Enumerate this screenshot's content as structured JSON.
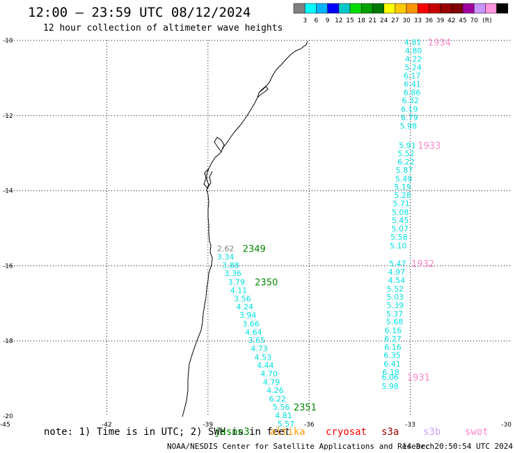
{
  "title": "12:00 — 23:59 UTC 08/12/2024",
  "subtitle": "12 hour collection of altimeter wave heights",
  "color_scale": {
    "unit": "(ft)",
    "colors": [
      "#808080",
      "#00ffff",
      "#00b4ff",
      "#0000ff",
      "#00c8c8",
      "#00dc00",
      "#00a000",
      "#007800",
      "#ffff00",
      "#ffc800",
      "#ff9600",
      "#ff0000",
      "#c80000",
      "#960000",
      "#800000",
      "#a000a0",
      "#c896ff",
      "#ff96dc",
      "#000000"
    ],
    "labels": [
      "3",
      "6",
      "9",
      "12",
      "15",
      "18",
      "21",
      "24",
      "27",
      "30",
      "33",
      "36",
      "39",
      "42",
      "45",
      "70"
    ]
  },
  "axes": {
    "lon_labels": [
      "-45",
      "-42",
      "-39",
      "-36",
      "-33",
      "-30"
    ],
    "lat_labels": [
      "-10",
      "-12",
      "-14",
      "-16",
      "-18",
      "-20"
    ],
    "lon_range": [
      -45,
      -30
    ],
    "lat_range": [
      -20,
      -10
    ]
  },
  "tracks": [
    {
      "color": "#00e0e0",
      "points": [
        {
          "lon": -33.18,
          "lat": -10.05,
          "v": "4.81"
        },
        {
          "lon": -33.16,
          "lat": -10.27,
          "v": "4.80"
        },
        {
          "lon": -33.16,
          "lat": -10.49,
          "v": "4.22"
        },
        {
          "lon": -33.17,
          "lat": -10.71,
          "v": "5.24"
        },
        {
          "lon": -33.2,
          "lat": -10.94,
          "v": "6.17"
        },
        {
          "lon": -33.19,
          "lat": -11.16,
          "v": "6.41"
        },
        {
          "lon": -33.2,
          "lat": -11.38,
          "v": "6.86"
        },
        {
          "lon": -33.25,
          "lat": -11.6,
          "v": "6.32"
        },
        {
          "lon": -33.28,
          "lat": -11.83,
          "v": "6.19"
        },
        {
          "lon": -33.28,
          "lat": -12.05,
          "v": "6.79"
        },
        {
          "lon": -33.31,
          "lat": -12.27,
          "v": "5.98"
        },
        {
          "lon": -33.34,
          "lat": -12.79,
          "v": "5.91"
        },
        {
          "lon": -33.38,
          "lat": -13.01,
          "v": "5.52"
        },
        {
          "lon": -33.38,
          "lat": -13.23,
          "v": "6.22"
        },
        {
          "lon": -33.43,
          "lat": -13.45,
          "v": "5.87"
        },
        {
          "lon": -33.45,
          "lat": -13.68,
          "v": "5.49"
        },
        {
          "lon": -33.48,
          "lat": -13.9,
          "v": "5.19"
        },
        {
          "lon": -33.48,
          "lat": -14.12,
          "v": "5.28"
        },
        {
          "lon": -33.52,
          "lat": -14.34,
          "v": "5.71"
        },
        {
          "lon": -33.55,
          "lat": -14.57,
          "v": "5.08"
        },
        {
          "lon": -33.55,
          "lat": -14.79,
          "v": "5.45"
        },
        {
          "lon": -33.56,
          "lat": -15.01,
          "v": "5.07"
        },
        {
          "lon": -33.59,
          "lat": -15.23,
          "v": "5.58"
        },
        {
          "lon": -33.61,
          "lat": -15.46,
          "v": "5.10"
        },
        {
          "lon": -33.63,
          "lat": -15.94,
          "v": "5.47"
        },
        {
          "lon": -33.66,
          "lat": -16.16,
          "v": "4.97"
        },
        {
          "lon": -33.66,
          "lat": -16.38,
          "v": "4.54"
        },
        {
          "lon": -33.7,
          "lat": -16.61,
          "v": "5.52"
        },
        {
          "lon": -33.7,
          "lat": -16.83,
          "v": "5.03"
        },
        {
          "lon": -33.7,
          "lat": -17.05,
          "v": "5.39"
        },
        {
          "lon": -33.72,
          "lat": -17.27,
          "v": "5.37"
        },
        {
          "lon": -33.72,
          "lat": -17.49,
          "v": "5.68"
        },
        {
          "lon": -33.76,
          "lat": -17.72,
          "v": "6.16"
        },
        {
          "lon": -33.77,
          "lat": -17.94,
          "v": "6.27"
        },
        {
          "lon": -33.77,
          "lat": -18.16,
          "v": "6.16"
        },
        {
          "lon": -33.79,
          "lat": -18.38,
          "v": "6.35"
        },
        {
          "lon": -33.79,
          "lat": -18.61,
          "v": "6.41"
        },
        {
          "lon": -33.83,
          "lat": -18.83,
          "v": "6.18"
        },
        {
          "lon": -33.85,
          "lat": -18.96,
          "v": "6.06"
        },
        {
          "lon": -33.85,
          "lat": -19.2,
          "v": "5.98"
        }
      ],
      "time_labels": [
        {
          "lon": -32.48,
          "lat": -10.05,
          "text": "1934",
          "color": "#ff88cc"
        },
        {
          "lon": -32.78,
          "lat": -12.79,
          "text": "1933",
          "color": "#ff88cc"
        },
        {
          "lon": -32.97,
          "lat": -15.94,
          "text": "1932",
          "color": "#ff88cc"
        },
        {
          "lon": -33.1,
          "lat": -18.96,
          "text": "1931",
          "color": "#ff88cc"
        }
      ]
    },
    {
      "color": "#00e0e0",
      "points": [
        {
          "lon": -38.73,
          "lat": -15.54,
          "v": "2.62",
          "color": "#808080"
        },
        {
          "lon": -38.73,
          "lat": -15.76,
          "v": "3.34"
        },
        {
          "lon": -38.58,
          "lat": -15.98,
          "v": "3.88"
        },
        {
          "lon": -38.51,
          "lat": -16.2,
          "v": "3.36"
        },
        {
          "lon": -38.41,
          "lat": -16.43,
          "v": "3.79"
        },
        {
          "lon": -38.34,
          "lat": -16.65,
          "v": "4.11"
        },
        {
          "lon": -38.23,
          "lat": -16.87,
          "v": "3.56"
        },
        {
          "lon": -38.16,
          "lat": -17.09,
          "v": "4.24"
        },
        {
          "lon": -38.07,
          "lat": -17.31,
          "v": "3.94"
        },
        {
          "lon": -37.98,
          "lat": -17.54,
          "v": "3.66"
        },
        {
          "lon": -37.9,
          "lat": -17.76,
          "v": "4.64"
        },
        {
          "lon": -37.81,
          "lat": -17.98,
          "v": "3.65"
        },
        {
          "lon": -37.73,
          "lat": -18.2,
          "v": "4.73"
        },
        {
          "lon": -37.62,
          "lat": -18.43,
          "v": "4.53"
        },
        {
          "lon": -37.55,
          "lat": -18.65,
          "v": "4.44"
        },
        {
          "lon": -37.44,
          "lat": -18.87,
          "v": "4.70"
        },
        {
          "lon": -37.37,
          "lat": -19.09,
          "v": "4.79"
        },
        {
          "lon": -37.26,
          "lat": -19.31,
          "v": "4.26"
        },
        {
          "lon": -37.19,
          "lat": -19.54,
          "v": "6.22"
        },
        {
          "lon": -37.08,
          "lat": -19.76,
          "v": "5.56"
        },
        {
          "lon": -37.01,
          "lat": -19.98,
          "v": "4.81"
        },
        {
          "lon": -36.94,
          "lat": -20.2,
          "v": "5.57"
        }
      ],
      "time_labels": [
        {
          "lon": -37.97,
          "lat": -15.54,
          "text": "2349",
          "color": "#008800"
        },
        {
          "lon": -37.61,
          "lat": -16.43,
          "text": "2350",
          "color": "#008800"
        },
        {
          "lon": -36.46,
          "lat": -19.76,
          "text": "2351",
          "color": "#008800"
        }
      ]
    }
  ],
  "footer": {
    "note": "note: 1) Time is in UTC; 2) SWH is in feet",
    "satellites": [
      {
        "name": "jason3",
        "color": "#008800"
      },
      {
        "name": "altika",
        "color": "#ff9900"
      },
      {
        "name": "cryosat",
        "color": "#ff0000"
      },
      {
        "name": "s3a",
        "color": "#a00000"
      },
      {
        "name": "s3b",
        "color": "#c8a0ff"
      },
      {
        "name": "swot",
        "color": "#ff88cc"
      }
    ],
    "credit": "NOAA/NESDIS Center for Satellite Applications and Research",
    "timestamp": "14 Dec 20:50:54 UTC 2024"
  }
}
